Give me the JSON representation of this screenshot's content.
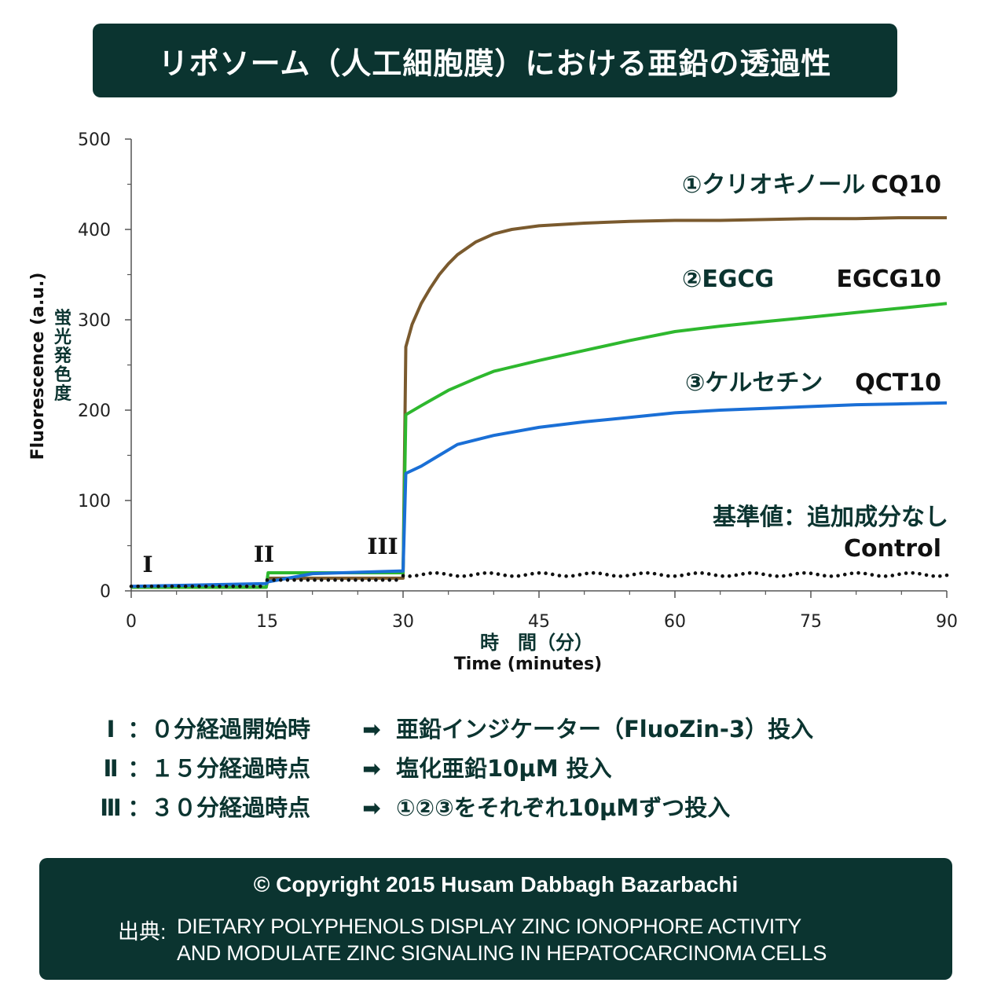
{
  "title": "リポソーム（人工細胞膜）における亜鉛の透過性",
  "chart_data": {
    "type": "line",
    "xlabel_jp": "時　間（分）",
    "xlabel": "Time (minutes)",
    "ylabel": "Fluorescence (a.u.)",
    "ylabel_jp": "蛍光発色度",
    "xlim": [
      0,
      90
    ],
    "ylim": [
      0,
      500
    ],
    "xticks": [
      "0",
      "15",
      "30",
      "45",
      "60",
      "75",
      "90"
    ],
    "yticks": [
      "0",
      "100",
      "200",
      "300",
      "400",
      "500"
    ],
    "annotations": [
      {
        "text": "I",
        "x": 2,
        "y": 25
      },
      {
        "text": "II",
        "x": 15,
        "y": 35
      },
      {
        "text": "III",
        "x": 28,
        "y": 40
      }
    ],
    "series": [
      {
        "name": "CQ10",
        "label_jp": "①クリオキノール",
        "color": "#7a5a2e",
        "x": [
          0,
          14.9,
          15.1,
          29.9,
          30.0,
          30.3,
          31,
          32,
          33,
          34,
          35,
          36,
          38,
          40,
          42,
          45,
          50,
          55,
          60,
          65,
          70,
          75,
          80,
          85,
          90
        ],
        "y": [
          4,
          4,
          14,
          14,
          14,
          270,
          295,
          318,
          335,
          350,
          362,
          372,
          386,
          395,
          400,
          404,
          407,
          409,
          410,
          410,
          411,
          412,
          412,
          413,
          413
        ]
      },
      {
        "name": "EGCG10",
        "label_jp": "②EGCG",
        "color": "#2eb82e",
        "x": [
          0,
          14.9,
          15.1,
          29.9,
          30.0,
          30.3,
          32,
          35,
          38,
          40,
          45,
          50,
          55,
          60,
          65,
          70,
          75,
          80,
          85,
          90
        ],
        "y": [
          4,
          4,
          20,
          20,
          20,
          195,
          205,
          222,
          235,
          243,
          255,
          266,
          277,
          287,
          293,
          298,
          303,
          308,
          313,
          318
        ]
      },
      {
        "name": "QCT10",
        "label_jp": "③ケルセチン",
        "color": "#1a6fd6",
        "x": [
          0,
          14.9,
          15.1,
          20,
          29.9,
          30.0,
          30.3,
          32,
          34,
          36,
          40,
          45,
          50,
          55,
          60,
          65,
          70,
          75,
          80,
          85,
          90
        ],
        "y": [
          5,
          8,
          10,
          19,
          22,
          22,
          130,
          138,
          150,
          162,
          172,
          181,
          187,
          192,
          197,
          200,
          202,
          204,
          206,
          207,
          208
        ]
      },
      {
        "name": "Control",
        "label_jp": "基準値：追加成分なし",
        "color": "#111111",
        "x": [
          0,
          15,
          30,
          45,
          60,
          75,
          90
        ],
        "y": [
          5,
          12,
          18,
          18,
          18,
          18,
          18
        ]
      }
    ]
  },
  "legend": [
    {
      "num": "Ⅰ",
      "sep": "：",
      "cond": "０分経過開始時",
      "arrow": "➡",
      "action": "亜鉛インジケーター（FluoZin-3）投入"
    },
    {
      "num": "Ⅱ",
      "sep": "：",
      "cond": "１５分経過時点",
      "arrow": "➡",
      "action": "塩化亜鉛10μM 投入"
    },
    {
      "num": "Ⅲ",
      "sep": "：",
      "cond": "３０分経過時点",
      "arrow": "➡",
      "action": "①②③をそれぞれ10μMずつ投入"
    }
  ],
  "footer": {
    "copyright": "© Copyright 2015  Husam Dabbagh Bazarbachi",
    "source_label": "出典:",
    "source_line1": "DIETARY POLYPHENOLS DISPLAY ZINC IONOPHORE ACTIVITY",
    "source_line2": "AND MODULATE ZINC SIGNALING IN HEPATOCARCINOMA CELLS"
  }
}
